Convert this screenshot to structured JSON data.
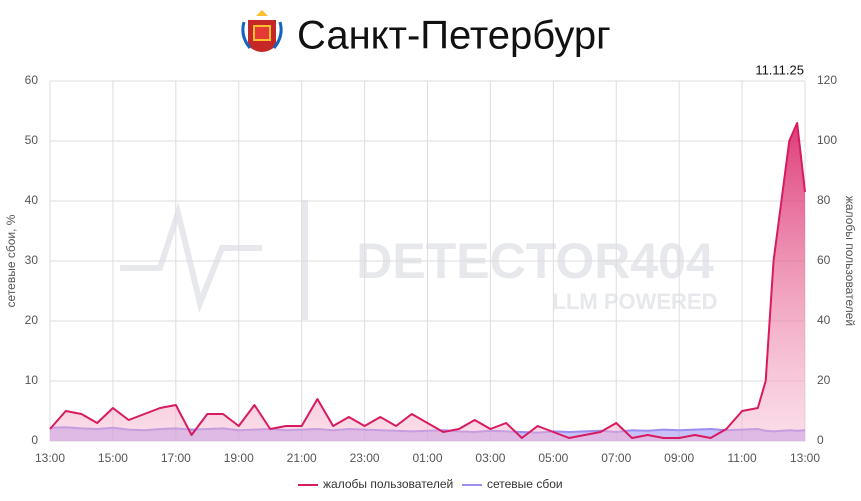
{
  "chart_data": {
    "type": "line",
    "title": "Санкт-Петербург",
    "date": "11.11.25",
    "watermark": [
      "DETECTOR404",
      "LLM POWERED"
    ],
    "ylabel": "сетевые сбои, %",
    "y2label": "жалобы пользователей",
    "grid": true,
    "legend": "bottom",
    "xlim": [
      0,
      24
    ],
    "xticks": [
      {
        "value": 0,
        "label": "13:00"
      },
      {
        "value": 2,
        "label": "15:00"
      },
      {
        "value": 4,
        "label": "17:00"
      },
      {
        "value": 6,
        "label": "19:00"
      },
      {
        "value": 8,
        "label": "21:00"
      },
      {
        "value": 10,
        "label": "23:00"
      },
      {
        "value": 12,
        "label": "01:00"
      },
      {
        "value": 14,
        "label": "03:00"
      },
      {
        "value": 16,
        "label": "05:00"
      },
      {
        "value": 18,
        "label": "07:00"
      },
      {
        "value": 20,
        "label": "09:00"
      },
      {
        "value": 22,
        "label": "11:00"
      },
      {
        "value": 24,
        "label": "13:00"
      }
    ],
    "ylim": [
      0,
      60
    ],
    "yticks": [
      0,
      10,
      20,
      30,
      40,
      50,
      60
    ],
    "y2lim": [
      0,
      120
    ],
    "y2ticks": [
      0,
      20,
      40,
      60,
      80,
      100,
      120
    ],
    "x": [
      0,
      0.5,
      1,
      1.5,
      2,
      2.5,
      3,
      3.5,
      4,
      4.5,
      5,
      5.5,
      6,
      6.5,
      7,
      7.5,
      8,
      8.5,
      9,
      9.5,
      10,
      10.5,
      11,
      11.5,
      12,
      12.5,
      13,
      13.5,
      14,
      14.5,
      15,
      15.5,
      16,
      16.5,
      17,
      17.5,
      18,
      18.5,
      19,
      19.5,
      20,
      20.5,
      21,
      21.5,
      22,
      22.5,
      22.75,
      23,
      23.5,
      23.75,
      24
    ],
    "series": [
      {
        "name": "жалобы пользователей",
        "color": "#d81b60",
        "axis": "y2",
        "values": [
          4,
          10,
          9,
          6,
          11,
          7,
          9,
          11,
          12,
          2,
          9,
          9,
          5,
          12,
          4,
          5,
          5,
          14,
          5,
          8,
          5,
          8,
          5,
          9,
          6,
          3,
          4,
          7,
          4,
          6,
          1,
          5,
          3,
          1,
          2,
          3,
          6,
          1,
          2,
          1,
          1,
          2,
          1,
          4,
          10,
          11,
          20,
          60,
          100,
          106,
          83
        ]
      },
      {
        "name": "сетевые сбои",
        "color": "#9c8df0",
        "values": [
          2.2,
          2.3,
          2.1,
          2.0,
          2.2,
          1.9,
          1.8,
          2.0,
          2.1,
          1.9,
          2.0,
          2.1,
          1.8,
          1.9,
          2.0,
          1.8,
          1.9,
          2.0,
          1.8,
          2.0,
          1.9,
          1.8,
          1.7,
          1.6,
          1.7,
          1.8,
          1.6,
          1.5,
          1.7,
          1.6,
          1.5,
          1.4,
          1.6,
          1.5,
          1.6,
          1.7,
          1.5,
          1.8,
          1.7,
          1.9,
          1.8,
          1.9,
          2.0,
          1.8,
          1.9,
          2.0,
          1.7,
          1.6,
          1.8,
          1.7,
          1.8
        ]
      }
    ]
  }
}
